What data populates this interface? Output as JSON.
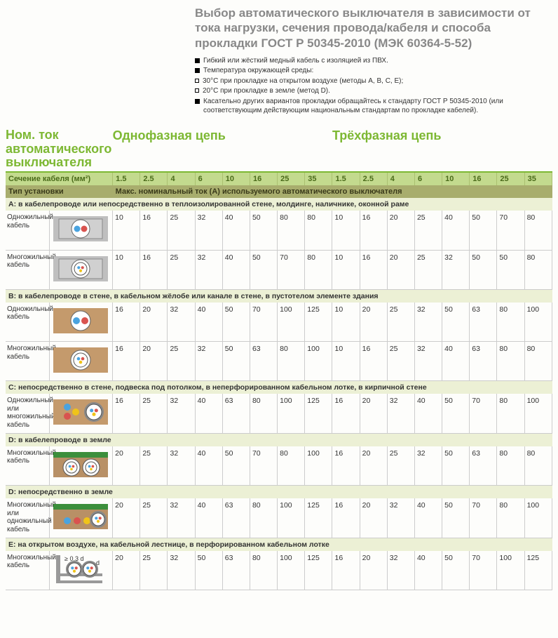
{
  "title": "Выбор автоматического выключателя в зависимости от тока нагрузки, сечения провода/кабеля и способа прокладки ГОСТ Р 50345-2010  (МЭК 60364-5-52)",
  "notes": [
    {
      "m": "f",
      "t": "Гибкий или жёсткий медный кабель с изоляцией из ПВХ."
    },
    {
      "m": "f",
      "t": "Температура окружающей среды:"
    },
    {
      "m": "o",
      "t": "30°С при прокладке на открытом воздухе (методы A, B, C, E);"
    },
    {
      "m": "o",
      "t": "20°С при прокладке в земле (метод D)."
    },
    {
      "m": "f",
      "t": "Касательно других вариантов прокладки обращайтесь к стандарту ГОСТ Р 50345-2010 (или соответствующим действующим национальным стандартам по прокладке кабелей)."
    }
  ],
  "col1_head": "Ном. ток автоматического выключателя",
  "phase1": "Однофазная цепь",
  "phase3": "Трёхфазная цепь",
  "section_label": "Сечение кабеля (мм²)",
  "sections": [
    "1.5",
    "2.5",
    "4",
    "6",
    "10",
    "16",
    "25",
    "35",
    "1.5",
    "2.5",
    "4",
    "6",
    "10",
    "16",
    "25",
    "35"
  ],
  "install_label": "Тип установки",
  "max_label": "Макс. номинальный ток (A) используемого автоматического выключателя",
  "groups": [
    {
      "head": "A: в кабелепроводе или непосредственно в теплоизолированной стене, молдинге, наличнике, оконной раме",
      "rows": [
        {
          "label": "Одножильный кабель",
          "icon": "A1",
          "vals": [
            "10",
            "16",
            "25",
            "32",
            "40",
            "50",
            "80",
            "80",
            "10",
            "16",
            "20",
            "25",
            "40",
            "50",
            "70",
            "80"
          ]
        },
        {
          "label": "Многожильный кабель",
          "icon": "A2",
          "vals": [
            "10",
            "16",
            "25",
            "32",
            "40",
            "50",
            "70",
            "80",
            "10",
            "16",
            "20",
            "25",
            "32",
            "50",
            "50",
            "80"
          ]
        }
      ]
    },
    {
      "head": "B: в кабелепроводе в стене, в кабельном жёлобе или канале в стене, в пустотелом элементе здания",
      "rows": [
        {
          "label": "Одножильный кабель",
          "icon": "B1",
          "vals": [
            "16",
            "20",
            "32",
            "40",
            "50",
            "70",
            "100",
            "125",
            "10",
            "20",
            "25",
            "32",
            "50",
            "63",
            "80",
            "100"
          ]
        },
        {
          "label": "Многожильный кабель",
          "icon": "B2",
          "vals": [
            "16",
            "20",
            "25",
            "32",
            "50",
            "63",
            "80",
            "100",
            "10",
            "16",
            "25",
            "32",
            "40",
            "63",
            "80",
            "80"
          ]
        }
      ]
    },
    {
      "head": "C: непосредственно в стене, подвеска под потолком, в неперфорированном кабельном лотке, в кирпичной стене",
      "rows": [
        {
          "label": "Одножильный или многожильный кабель",
          "icon": "C",
          "vals": [
            "16",
            "25",
            "32",
            "40",
            "63",
            "80",
            "100",
            "125",
            "16",
            "20",
            "32",
            "40",
            "50",
            "70",
            "80",
            "100"
          ]
        }
      ]
    },
    {
      "head": "D: в кабелепроводе в земле",
      "rows": [
        {
          "label": "Многожильный кабель",
          "icon": "D1",
          "vals": [
            "20",
            "25",
            "32",
            "40",
            "50",
            "70",
            "80",
            "100",
            "16",
            "20",
            "25",
            "32",
            "50",
            "63",
            "80",
            "80"
          ]
        }
      ]
    },
    {
      "head": "D: непосредственно в земле",
      "rows": [
        {
          "label": "Многожильный или одножильный кабель",
          "icon": "D2",
          "vals": [
            "20",
            "25",
            "32",
            "40",
            "63",
            "80",
            "100",
            "125",
            "16",
            "20",
            "32",
            "40",
            "50",
            "70",
            "80",
            "100"
          ]
        }
      ]
    },
    {
      "head": "E: на открытом воздухе, на кабельной лестнице, в перфорированном кабельном лотке",
      "rows": [
        {
          "label": "Многожильный кабель",
          "icon": "E",
          "vals": [
            "20",
            "25",
            "32",
            "50",
            "63",
            "80",
            "100",
            "125",
            "16",
            "20",
            "32",
            "40",
            "50",
            "70",
            "100",
            "125"
          ]
        }
      ]
    }
  ],
  "icon_colors": {
    "wall": "#bfbfbf",
    "insul": "#d0d0d0",
    "cable_sheath": "#fff",
    "wire_b": "#4aa3df",
    "wire_r": "#d9534f",
    "wire_y": "#f0c419",
    "brick": "#c49a6c",
    "soil": "#b89066",
    "soil2": "#9c7a50",
    "green": "#3c8f3c",
    "tray": "#999"
  }
}
